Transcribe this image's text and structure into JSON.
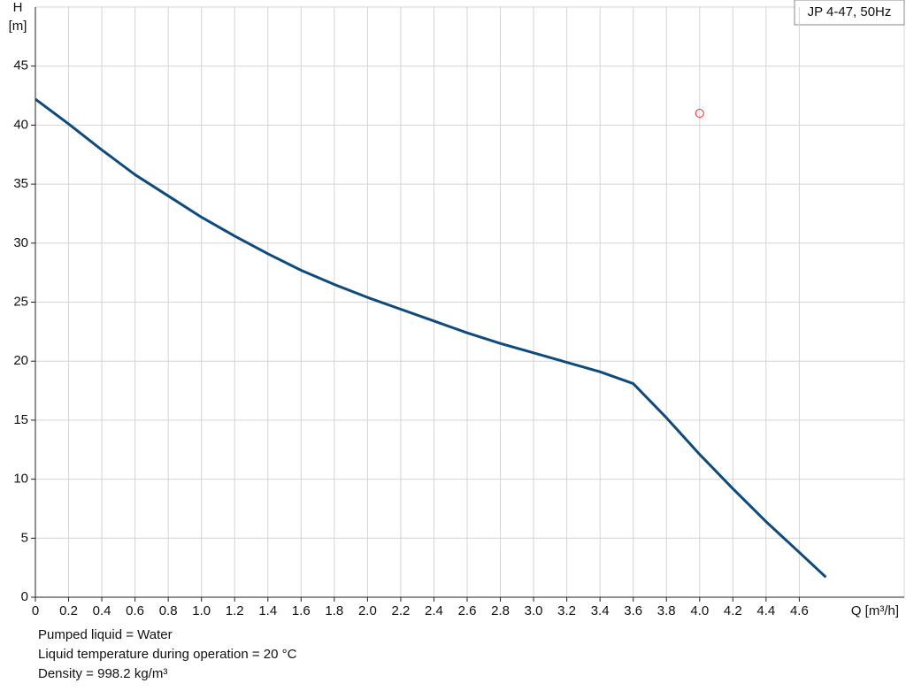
{
  "chart_data": {
    "type": "line",
    "title": "JP 4-47, 50Hz",
    "y_label": [
      "H",
      "[m]"
    ],
    "x_label": "Q [m³/h]",
    "notes": [
      "Pumped liquid = Water",
      "Liquid temperature during operation = 20 °C",
      "Density = 998.2 kg/m³"
    ],
    "x": [
      0,
      0.2,
      0.4,
      0.6,
      0.8,
      1.0,
      1.2,
      1.4,
      1.6,
      1.8,
      2.0,
      2.2,
      2.4,
      2.6,
      2.8,
      3.0,
      3.2,
      3.4,
      3.6,
      3.8,
      4.0,
      4.2,
      4.4,
      4.6,
      4.76
    ],
    "series": [
      {
        "color": "#0f4a7c",
        "values": [
          42.2,
          40.1,
          37.9,
          35.8,
          34.0,
          32.2,
          30.6,
          29.1,
          27.7,
          26.5,
          25.4,
          24.4,
          23.4,
          22.4,
          21.5,
          20.7,
          19.9,
          19.1,
          18.1,
          15.2,
          12.1,
          9.2,
          6.4,
          3.8,
          1.7
        ]
      }
    ],
    "point": {
      "x": 4.0,
      "y": 41,
      "color": "#e03030"
    },
    "xlim": [
      0,
      5.2
    ],
    "ylim": [
      0,
      50
    ],
    "xticks": [
      0,
      0.2,
      0.4,
      0.6,
      0.8,
      {
        "value": 1,
        "label": "1.0"
      },
      1.2,
      1.4,
      1.6,
      1.8,
      {
        "value": 2,
        "label": "2.0"
      },
      2.2,
      2.4,
      2.6,
      2.8,
      {
        "value": 3,
        "label": "3.0"
      },
      3.2,
      3.4,
      3.6,
      3.8,
      {
        "value": 4,
        "label": "4.0"
      },
      4.2,
      4.4,
      4.6
    ],
    "yticks": [
      0,
      5,
      10,
      15,
      20,
      25,
      30,
      35,
      40,
      45
    ],
    "grid": true
  }
}
